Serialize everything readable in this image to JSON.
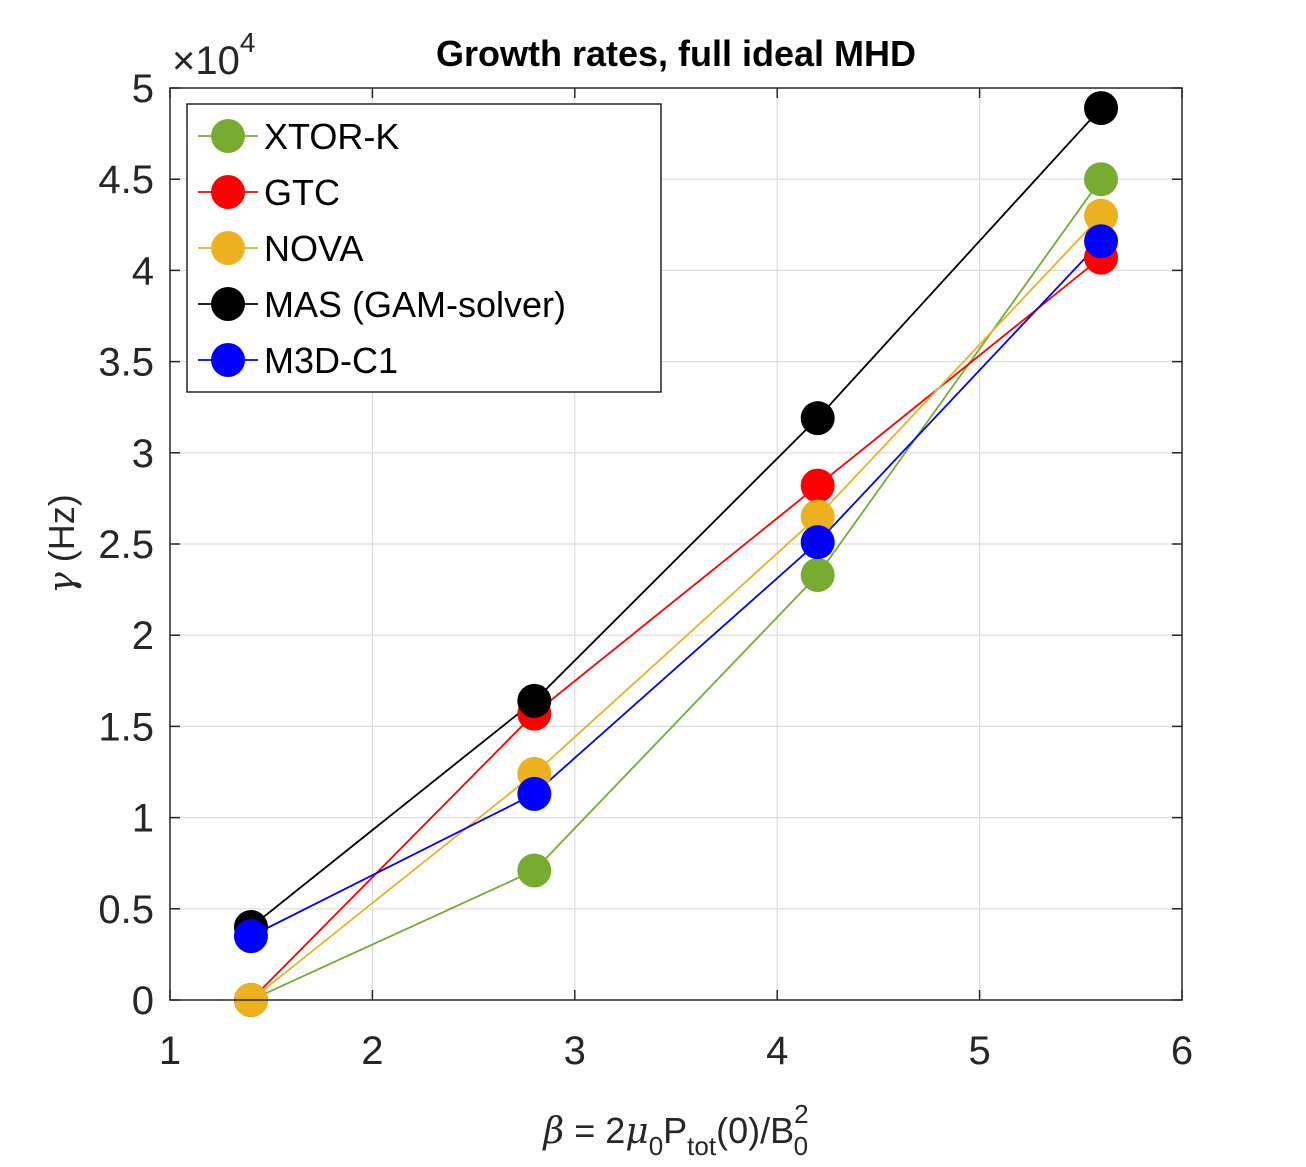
{
  "chart_data": {
    "type": "line",
    "title": "Growth rates, full ideal MHD",
    "xlabel": {
      "beta": "β",
      "eq": " = 2",
      "mu": "μ",
      "sub0": "0",
      "P": "P",
      "tot": "tot",
      "rest": "(0)/B",
      "sup2": "2",
      "sub0b": "0"
    },
    "ylabel": {
      "gamma": "γ",
      "unit": " (Hz)"
    },
    "y_exponent": {
      "prefix": "×10",
      "power": "4"
    },
    "xlim": [
      1,
      6
    ],
    "ylim": [
      0,
      5
    ],
    "xticks": [
      1,
      2,
      3,
      4,
      5,
      6
    ],
    "yticks": [
      0,
      0.5,
      1,
      1.5,
      2,
      2.5,
      3,
      3.5,
      4,
      4.5,
      5
    ],
    "x_tick_labels": [
      "1",
      "2",
      "3",
      "4",
      "5",
      "6"
    ],
    "y_tick_labels": [
      "0",
      "0.5",
      "1",
      "1.5",
      "2",
      "2.5",
      "3",
      "3.5",
      "4",
      "4.5",
      "5"
    ],
    "grid": true,
    "legend_location": "top-left",
    "x": [
      1.4,
      2.8,
      4.2,
      5.6
    ],
    "series": [
      {
        "name": "XTOR-K",
        "color": "#77AC30",
        "values": [
          0,
          0.71,
          2.33,
          4.5
        ]
      },
      {
        "name": "GTC",
        "color": "#FF0000",
        "values": [
          0,
          1.57,
          2.82,
          4.07
        ]
      },
      {
        "name": "NOVA",
        "color": "#EDB120",
        "values": [
          0,
          1.24,
          2.65,
          4.3
        ]
      },
      {
        "name": "MAS (GAM-solver)",
        "color": "#000000",
        "values": [
          0.4,
          1.64,
          3.19,
          4.89
        ]
      },
      {
        "name": "M3D-C1",
        "color": "#0000FF",
        "values": [
          0.35,
          1.13,
          2.51,
          4.16
        ]
      }
    ]
  }
}
